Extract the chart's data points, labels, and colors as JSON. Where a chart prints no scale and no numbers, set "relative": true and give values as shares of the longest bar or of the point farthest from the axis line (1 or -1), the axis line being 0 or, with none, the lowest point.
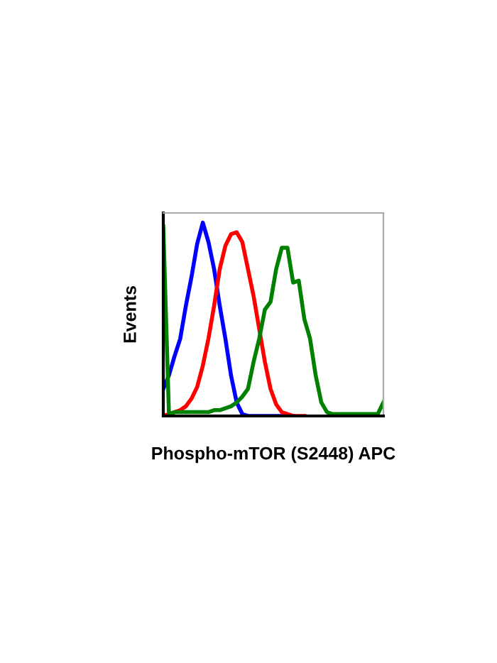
{
  "chart_data": {
    "type": "line",
    "relative": true,
    "xlabel": "Phospho-mTOR (S2448) APC",
    "ylabel": "Events",
    "grid": false,
    "marker": "none",
    "line_style": "solid",
    "categories": [
      null,
      null,
      null,
      null,
      null,
      null,
      null,
      null,
      null,
      null,
      null,
      null,
      null,
      null,
      null,
      null,
      null,
      null,
      null,
      null,
      null,
      null,
      null,
      null,
      null,
      null,
      null,
      null,
      null,
      null,
      null,
      null,
      null,
      null,
      null,
      null,
      null,
      null,
      null,
      null
    ],
    "series": [
      {
        "color": "#0000ff",
        "values": [
          0.14,
          0.21,
          0.31,
          0.4,
          0.57,
          0.72,
          0.89,
          1.0,
          0.9,
          0.76,
          0.57,
          0.4,
          0.21,
          0.07,
          0.01,
          0,
          0,
          0,
          0,
          0,
          0,
          0,
          0,
          0,
          null,
          null,
          null,
          null,
          null,
          null,
          null,
          null,
          null,
          null,
          null,
          null,
          null,
          null,
          null,
          null
        ]
      },
      {
        "color": "#ff0000",
        "values": [
          0,
          0.01,
          0.02,
          0.03,
          0.05,
          0.09,
          0.15,
          0.26,
          0.4,
          0.57,
          0.76,
          0.88,
          0.94,
          0.95,
          0.9,
          0.76,
          0.62,
          0.45,
          0.28,
          0.14,
          0.06,
          0.02,
          0.01,
          0,
          0,
          0,
          null,
          null,
          null,
          null,
          null,
          null,
          null,
          null,
          null,
          null,
          null,
          null,
          null,
          null
        ]
      },
      {
        "color": "#008000",
        "values": [
          0.98,
          0.01,
          0.02,
          0.02,
          0.02,
          0.02,
          0.02,
          0.02,
          0.02,
          0.03,
          0.03,
          0.04,
          0.05,
          0.07,
          0.1,
          0.14,
          0.28,
          0.4,
          0.55,
          0.59,
          0.76,
          0.87,
          0.87,
          0.69,
          0.7,
          0.5,
          0.4,
          0.21,
          0.07,
          0.02,
          0.01,
          0.01,
          0.01,
          0.01,
          0.01,
          0.01,
          0.01,
          0.01,
          0.01,
          0.07
        ]
      }
    ]
  }
}
